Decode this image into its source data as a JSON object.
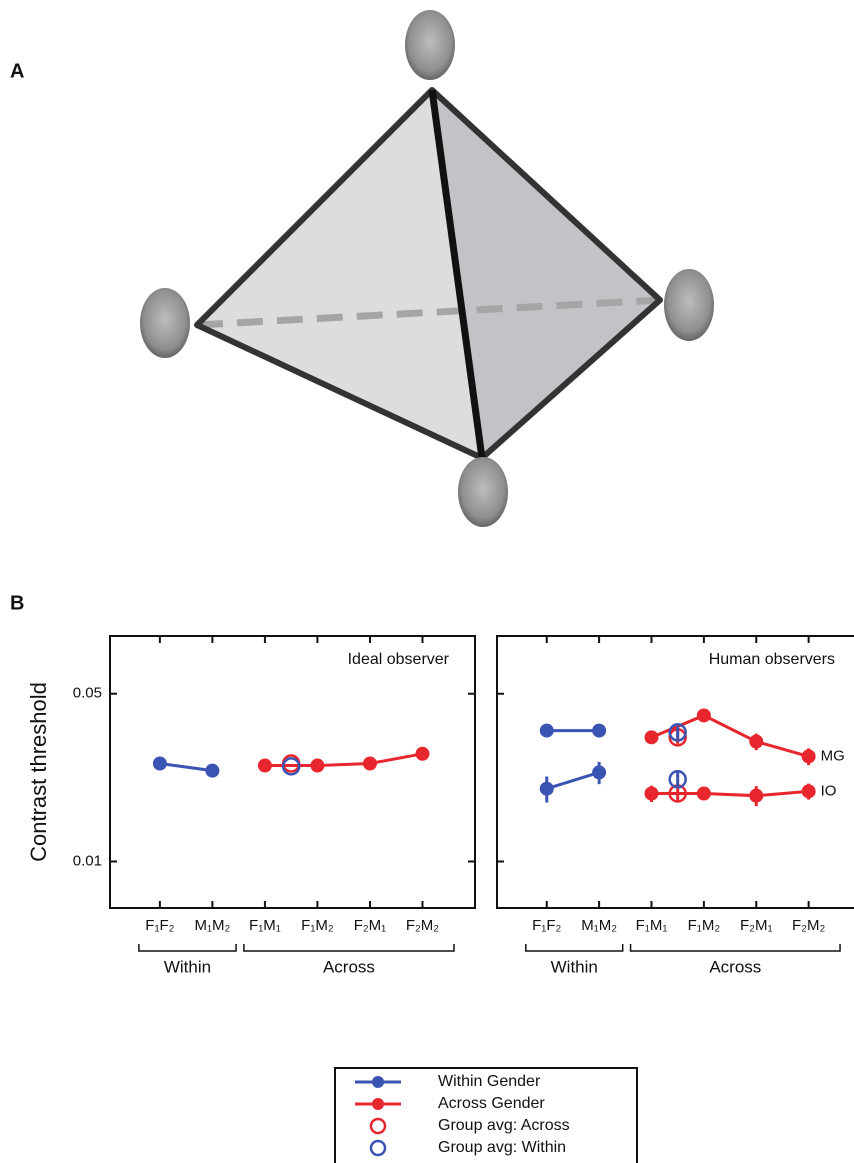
{
  "panel_labels": [
    "A",
    "B"
  ],
  "chart_data": [
    {
      "type": "line",
      "title": "Ideal observer",
      "ylabel": "Contrast threshold",
      "log_y": true,
      "ylim": [
        0.0064,
        0.087
      ],
      "yticks": [
        0.01,
        0.05
      ],
      "xlim": [
        0.05,
        7.0
      ],
      "xticks": [
        {
          "value": 1,
          "label": "F₁F₂"
        },
        {
          "value": 2,
          "label": "M₁M₂"
        },
        {
          "value": 3,
          "label": "F₁M₁"
        },
        {
          "value": 4,
          "label": "F₁M₂"
        },
        {
          "value": 5,
          "label": "F₂M₁"
        },
        {
          "value": 6,
          "label": "F₂M₂"
        }
      ],
      "groups": [
        {
          "label": "Within",
          "xlim": [
            0.6,
            2.45
          ]
        },
        {
          "label": "Across",
          "xlim": [
            2.6,
            6.6
          ]
        }
      ],
      "series": [
        {
          "name": "Within Gender",
          "color": "#3a54b4",
          "marker": "filled",
          "x": [
            1,
            2
          ],
          "values": [
            0.0256,
            0.0239
          ]
        },
        {
          "name": "Across Gender",
          "color": "#e8262d",
          "marker": "filled",
          "x": [
            3,
            4,
            5,
            6
          ],
          "values": [
            0.0251,
            0.0251,
            0.0256,
            0.0281
          ]
        },
        {
          "name": "Group avg: Across",
          "color": "#e8262d",
          "marker": "open",
          "x": [
            3.5
          ],
          "values": [
            0.0256
          ]
        },
        {
          "name": "Group avg: Within",
          "color": "#3a54b4",
          "marker": "open",
          "x": [
            3.5
          ],
          "values": [
            0.0249
          ]
        }
      ]
    },
    {
      "type": "line",
      "title": "Human observers",
      "log_y": true,
      "ylim": [
        0.0064,
        0.087
      ],
      "yticks": [
        0.01,
        0.05
      ],
      "xlim": [
        0.05,
        7.0
      ],
      "xticks": [
        {
          "value": 1,
          "label": "F₁F₂"
        },
        {
          "value": 2,
          "label": "M₁M₂"
        },
        {
          "value": 3,
          "label": "F₁M₁"
        },
        {
          "value": 4,
          "label": "F₁M₂"
        },
        {
          "value": 5,
          "label": "F₂M₁"
        },
        {
          "value": 6,
          "label": "F₂M₂"
        }
      ],
      "groups": [
        {
          "label": "Within",
          "xlim": [
            0.6,
            2.45
          ]
        },
        {
          "label": "Across",
          "xlim": [
            2.6,
            6.6
          ]
        }
      ],
      "series": [
        {
          "color": "#3a54b4",
          "marker": "filled",
          "x": [
            1,
            2
          ],
          "values": [
            0.0351,
            0.0351
          ],
          "errors": [
            0.002,
            0.002
          ]
        },
        {
          "color": "#3a54b4",
          "marker": "filled",
          "x": [
            1,
            2
          ],
          "values": [
            0.0201,
            0.0235
          ],
          "errors": [
            0.0025,
            0.0025
          ]
        },
        {
          "label": "MG",
          "color": "#e8262d",
          "marker": "filled",
          "x": [
            3,
            4,
            5,
            6
          ],
          "values": [
            0.0329,
            0.0406,
            0.0316,
            0.0274
          ],
          "errors": [
            0.0015,
            0.0015,
            0.0025,
            0.0022
          ]
        },
        {
          "label": "IO",
          "color": "#e8262d",
          "marker": "filled",
          "x": [
            3,
            4,
            5,
            6
          ],
          "values": [
            0.0192,
            0.0192,
            0.0188,
            0.0196
          ],
          "errors": [
            0.0015,
            0.001,
            0.0018,
            0.0015
          ]
        },
        {
          "color": "#e8262d",
          "marker": "open",
          "x": [
            3.5
          ],
          "values": [
            0.0329
          ],
          "errors": [
            0.002
          ]
        },
        {
          "color": "#3a54b4",
          "marker": "open",
          "x": [
            3.5
          ],
          "values": [
            0.0345
          ],
          "errors": [
            0.002
          ]
        },
        {
          "color": "#e8262d",
          "marker": "open",
          "x": [
            3.5
          ],
          "values": [
            0.0192
          ],
          "errors": [
            0.0015
          ]
        },
        {
          "color": "#3a54b4",
          "marker": "open",
          "x": [
            3.5
          ],
          "values": [
            0.022
          ],
          "errors": [
            0.0015
          ]
        }
      ]
    }
  ]
}
